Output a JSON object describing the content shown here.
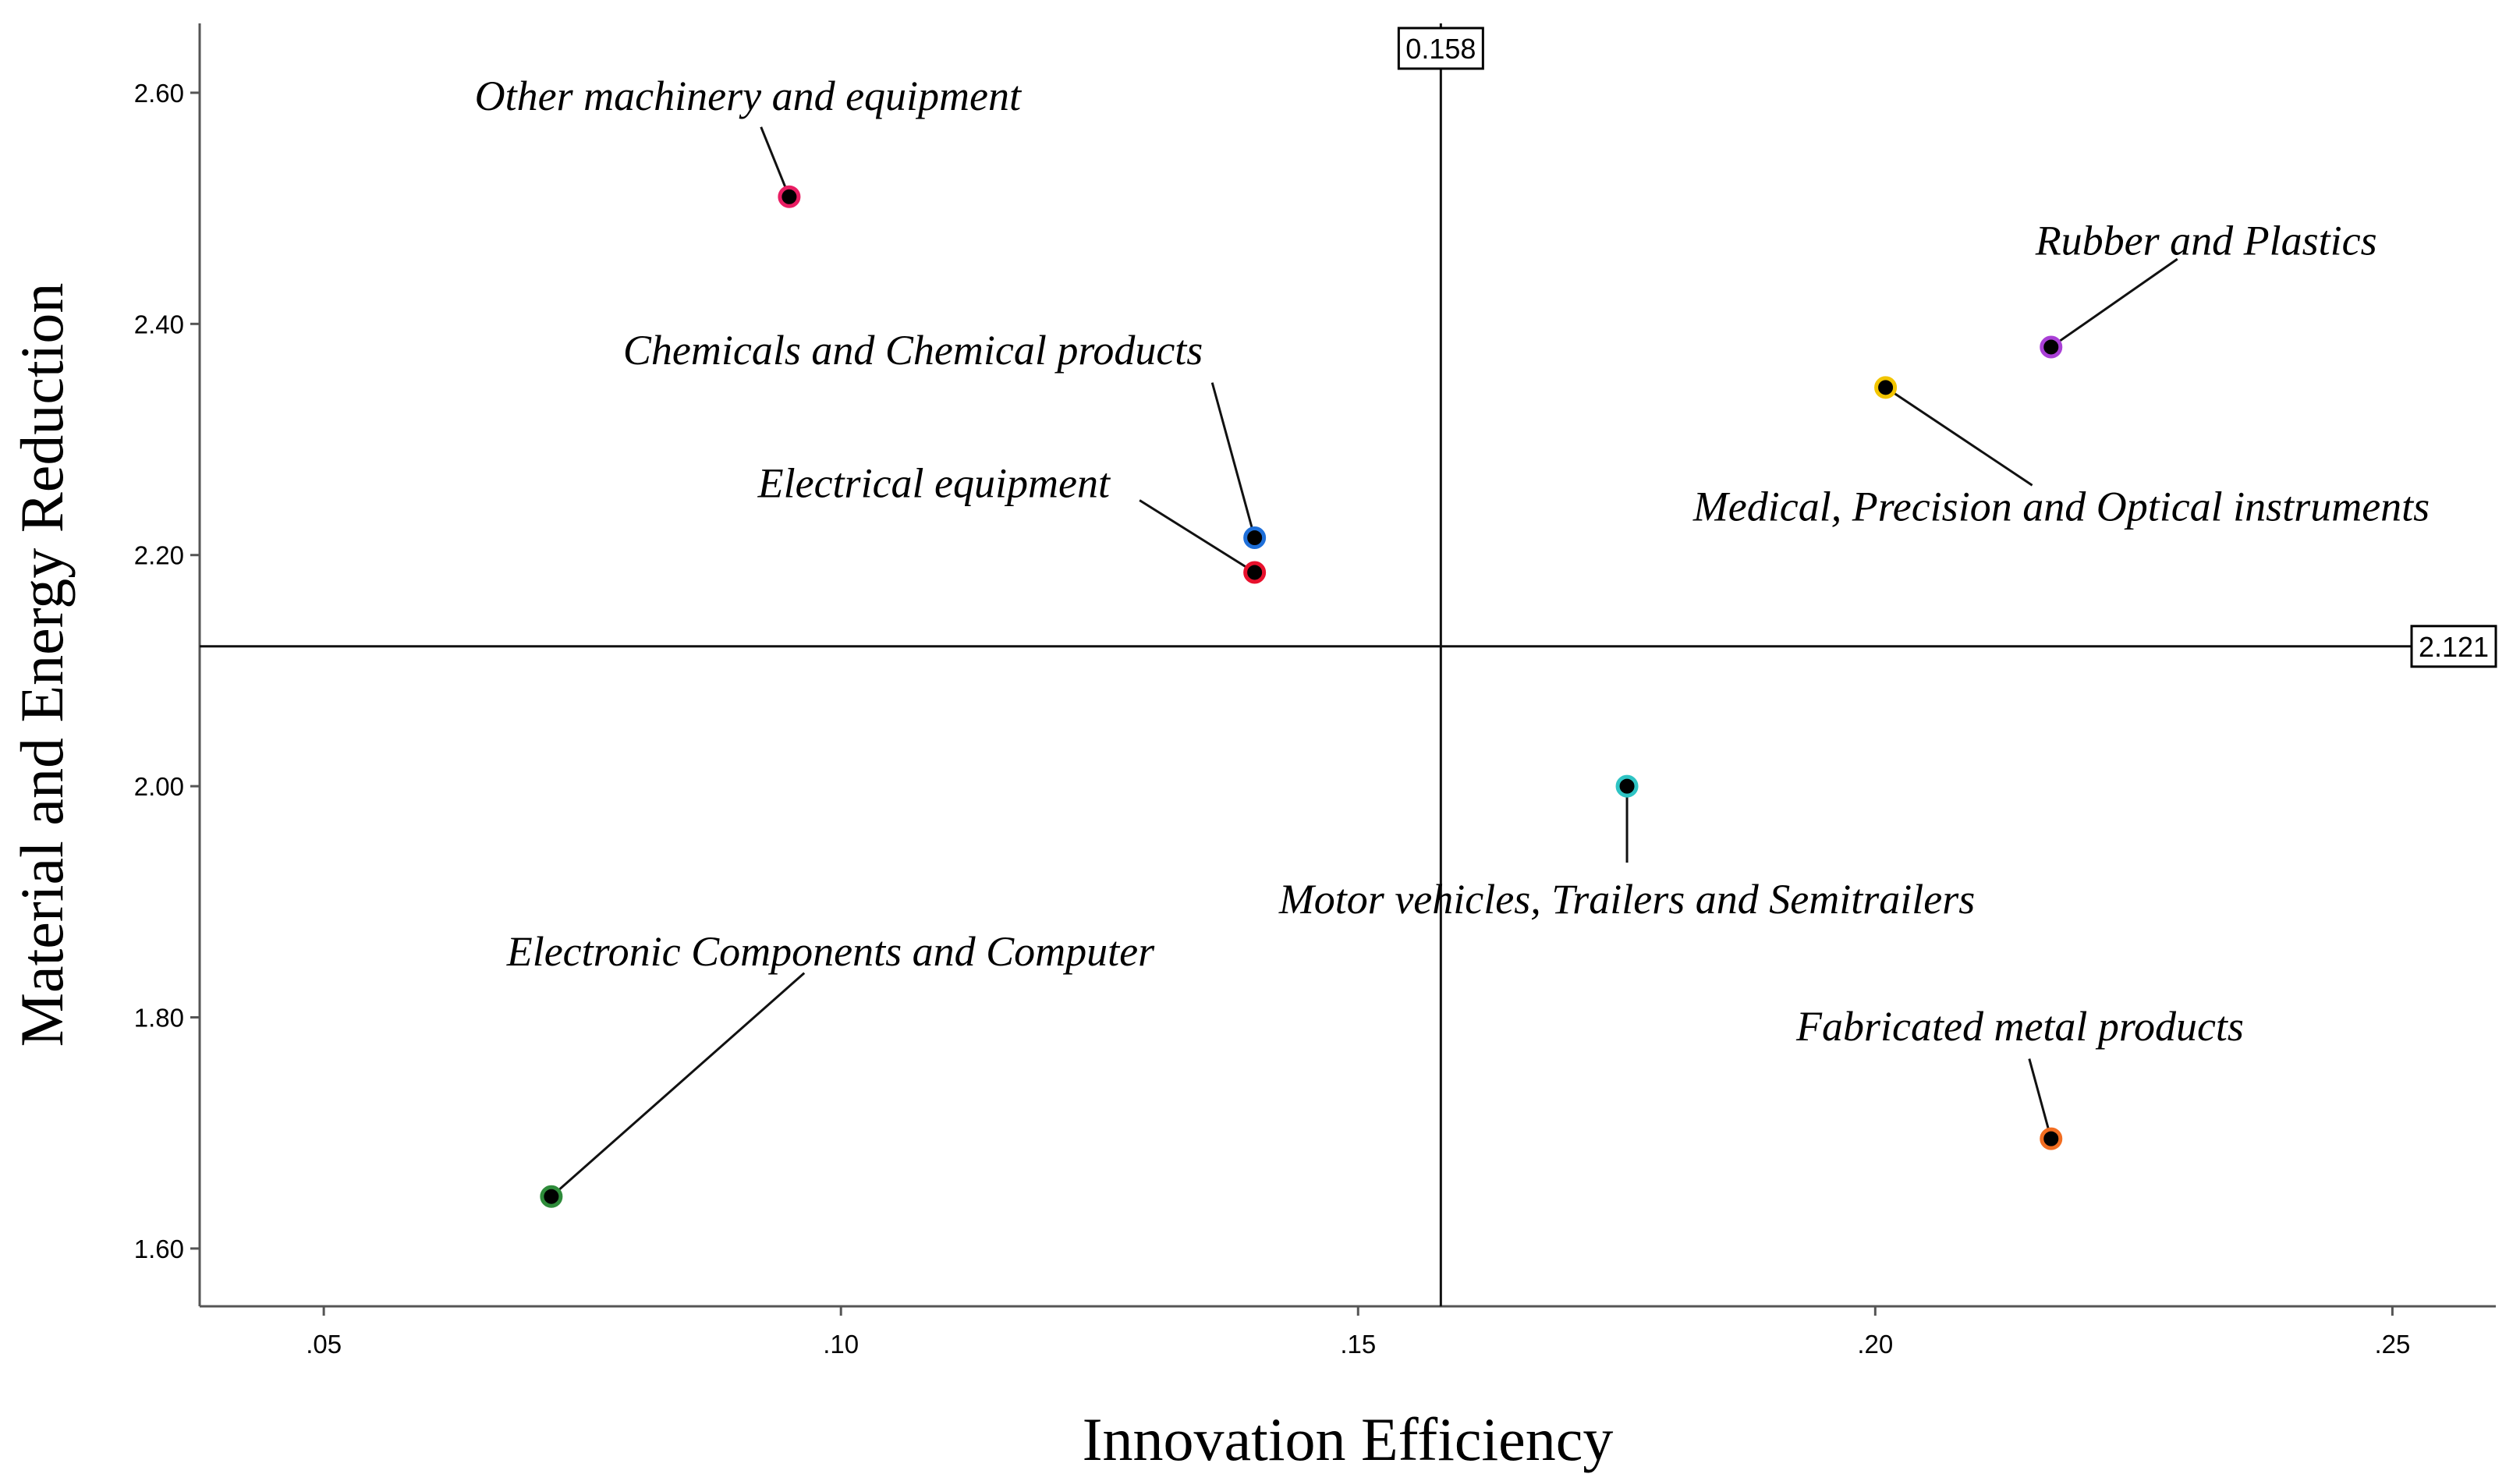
{
  "chart_data": {
    "type": "scatter",
    "title": "",
    "xlabel": "Innovation Efficiency",
    "ylabel": "Material and Energy Reduction",
    "xlim": [
      0.038,
      0.26
    ],
    "ylim": [
      1.55,
      2.66
    ],
    "x_ticks": [
      0.05,
      0.1,
      0.15,
      0.2,
      0.25
    ],
    "x_tick_labels": [
      ".05",
      ".10",
      ".15",
      ".20",
      ".25"
    ],
    "y_ticks": [
      1.6,
      1.8,
      2.0,
      2.2,
      2.4,
      2.6
    ],
    "y_tick_labels": [
      "1.60",
      "1.80",
      "2.00",
      "2.20",
      "2.40",
      "2.60"
    ],
    "grid": false,
    "reference_lines": {
      "vertical": {
        "value": 0.158,
        "label": "0.158"
      },
      "horizontal": {
        "value": 2.121,
        "label": "2.121"
      }
    },
    "points": [
      {
        "name": "Other machinery and equipment",
        "x": 0.095,
        "y": 2.51,
        "color": "#e91e63",
        "label_anchor": "middle",
        "label_dx": -0.004,
        "label_dy": 0.075
      },
      {
        "name": "Chemicals and Chemical products",
        "x": 0.14,
        "y": 2.215,
        "color": "#1e6fd9",
        "label_anchor": "end",
        "label_dx": -0.005,
        "label_dy": 0.15
      },
      {
        "name": "Electrical equipment",
        "x": 0.14,
        "y": 2.185,
        "color": "#e8112d",
        "label_anchor": "end",
        "label_dx": -0.014,
        "label_dy": 0.065
      },
      {
        "name": "Rubber and Plastics",
        "x": 0.217,
        "y": 2.38,
        "color": "#a93fd6",
        "label_anchor": "middle",
        "label_dx": 0.015,
        "label_dy": 0.08
      },
      {
        "name": "Medical, Precision and Optical instruments",
        "x": 0.201,
        "y": 2.345,
        "color": "#f2c500",
        "label_anchor": "middle",
        "label_dx": 0.017,
        "label_dy": -0.115
      },
      {
        "name": "Motor vehicles, Trailers and Semitrailers",
        "x": 0.176,
        "y": 2.0,
        "color": "#2ec4c4",
        "label_anchor": "middle",
        "label_dx": 0.0,
        "label_dy": -0.11
      },
      {
        "name": "Electronic Components and Computer",
        "x": 0.072,
        "y": 1.645,
        "color": "#2e8b3a",
        "label_anchor": "middle",
        "label_dx": 0.027,
        "label_dy": 0.2
      },
      {
        "name": "Fabricated metal products",
        "x": 0.217,
        "y": 1.695,
        "color": "#f26d21",
        "label_anchor": "middle",
        "label_dx": -0.003,
        "label_dy": 0.085
      }
    ]
  }
}
